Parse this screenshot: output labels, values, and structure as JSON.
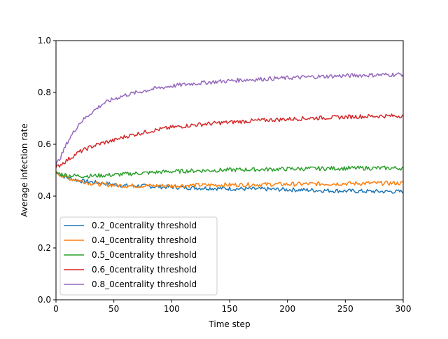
{
  "chart_data": {
    "type": "line",
    "title": "",
    "xlabel": "Time step",
    "ylabel": "Average infection rate",
    "xlim": [
      0,
      300
    ],
    "ylim": [
      0,
      1.0
    ],
    "xticks": [
      0,
      50,
      100,
      150,
      200,
      250,
      300
    ],
    "yticks": [
      0.0,
      0.2,
      0.4,
      0.6,
      0.8,
      1.0
    ],
    "ytick_labels": [
      "0.0",
      "0.2",
      "0.4",
      "0.6",
      "0.8",
      "1.0"
    ],
    "grid": false,
    "legend_position": "lower-left",
    "x": [
      0,
      5,
      10,
      20,
      30,
      40,
      50,
      60,
      70,
      80,
      90,
      100,
      120,
      140,
      160,
      180,
      200,
      220,
      240,
      260,
      280,
      300
    ],
    "series": [
      {
        "name": "0.2_0centrality threshold",
        "color": "#1f77b4",
        "values": [
          0.49,
          0.48,
          0.47,
          0.46,
          0.455,
          0.45,
          0.445,
          0.44,
          0.44,
          0.438,
          0.436,
          0.435,
          0.432,
          0.43,
          0.428,
          0.427,
          0.425,
          0.423,
          0.421,
          0.419,
          0.418,
          0.417
        ]
      },
      {
        "name": "0.4_0centrality threshold",
        "color": "#ff7f0e",
        "values": [
          0.49,
          0.48,
          0.47,
          0.46,
          0.45,
          0.445,
          0.442,
          0.44,
          0.44,
          0.44,
          0.44,
          0.44,
          0.442,
          0.443,
          0.444,
          0.445,
          0.446,
          0.447,
          0.448,
          0.449,
          0.45,
          0.45
        ]
      },
      {
        "name": "0.5_0centrality threshold",
        "color": "#2ca02c",
        "values": [
          0.49,
          0.485,
          0.48,
          0.478,
          0.478,
          0.48,
          0.482,
          0.485,
          0.488,
          0.49,
          0.493,
          0.495,
          0.498,
          0.5,
          0.502,
          0.503,
          0.505,
          0.506,
          0.507,
          0.508,
          0.508,
          0.508
        ]
      },
      {
        "name": "0.6_0centrality threshold",
        "color": "#d62728",
        "values": [
          0.51,
          0.525,
          0.54,
          0.57,
          0.59,
          0.605,
          0.615,
          0.63,
          0.64,
          0.65,
          0.658,
          0.665,
          0.675,
          0.682,
          0.688,
          0.693,
          0.697,
          0.701,
          0.704,
          0.707,
          0.709,
          0.71
        ]
      },
      {
        "name": "0.8_0centrality threshold",
        "color": "#9467bd",
        "values": [
          0.52,
          0.56,
          0.61,
          0.68,
          0.72,
          0.755,
          0.775,
          0.79,
          0.8,
          0.81,
          0.818,
          0.825,
          0.835,
          0.842,
          0.848,
          0.852,
          0.856,
          0.86,
          0.863,
          0.866,
          0.868,
          0.87
        ]
      }
    ]
  }
}
